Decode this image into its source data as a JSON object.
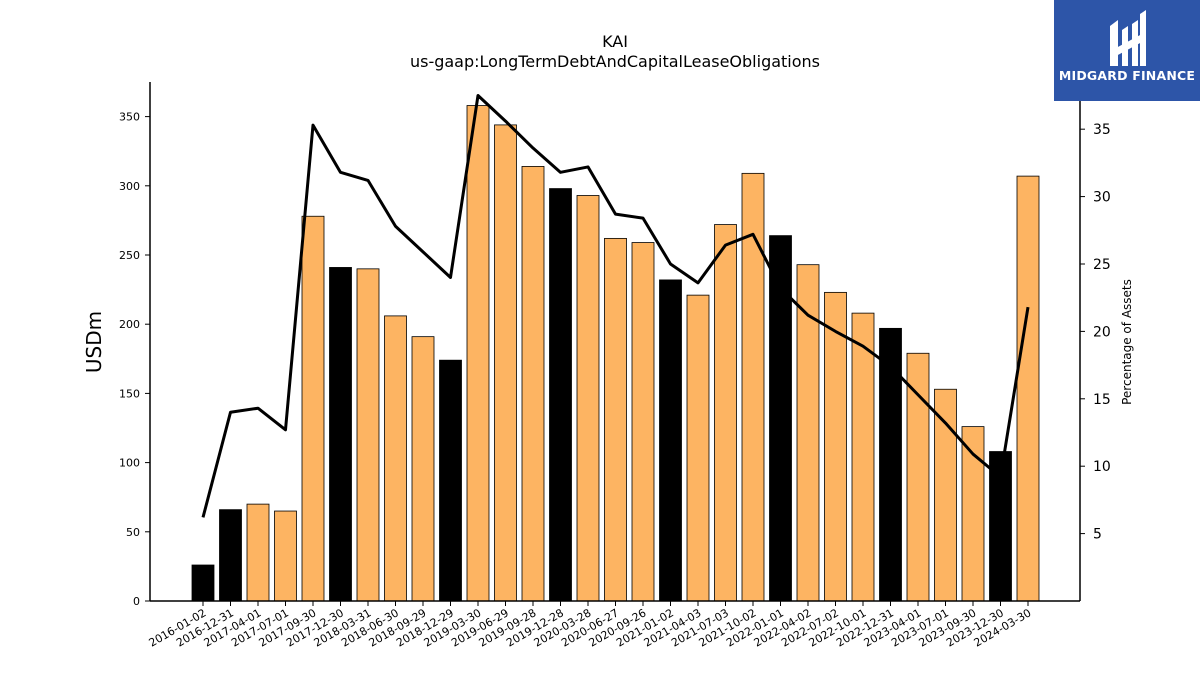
{
  "logo": {
    "text": "MIDGARD FINANCE",
    "icon": "midgard-logo-icon",
    "color": "#2d55a8"
  },
  "chart_data": {
    "type": "bar",
    "title": "KAI",
    "subtitle": "us-gaap:LongTermDebtAndCapitalLeaseObligations",
    "ylabel": "USDm",
    "ylabel_right": "Percentage of Assets",
    "ylim": [
      0,
      375
    ],
    "y2lim": [
      0,
      38.5
    ],
    "yticks": [
      0,
      50,
      100,
      150,
      200,
      250,
      300,
      350
    ],
    "y2ticks": [
      5,
      10,
      15,
      20,
      25,
      30,
      35
    ],
    "grid": false,
    "categories": [
      "2016-01-02",
      "2016-12-31",
      "2017-04-01",
      "2017-07-01",
      "2017-09-30",
      "2017-12-30",
      "2018-03-31",
      "2018-06-30",
      "2018-09-29",
      "2018-12-29",
      "2019-03-30",
      "2019-06-29",
      "2019-09-28",
      "2019-12-28",
      "2020-03-28",
      "2020-06-27",
      "2020-09-26",
      "2021-01-02",
      "2021-04-03",
      "2021-07-03",
      "2021-10-02",
      "2022-01-01",
      "2022-04-02",
      "2022-07-02",
      "2022-10-01",
      "2022-12-31",
      "2023-04-01",
      "2023-07-01",
      "2023-09-30",
      "2023-12-30",
      "2024-03-30"
    ],
    "series": [
      {
        "kind": "bar",
        "values": [
          26,
          66,
          70,
          65,
          278,
          241,
          240,
          206,
          191,
          174,
          358,
          344,
          314,
          298,
          293,
          262,
          259,
          232,
          221,
          272,
          309,
          264,
          243,
          223,
          208,
          197,
          179,
          153,
          126,
          108,
          307
        ],
        "year_end": [
          true,
          true,
          false,
          false,
          false,
          true,
          false,
          false,
          false,
          true,
          false,
          false,
          false,
          true,
          false,
          false,
          false,
          true,
          false,
          false,
          false,
          true,
          false,
          false,
          false,
          true,
          false,
          false,
          false,
          true,
          false
        ],
        "colors": {
          "quarter": "#fdb462",
          "year_end": "#000000"
        }
      },
      {
        "kind": "line",
        "axis": "right",
        "color": "#000000",
        "values": [
          6.2,
          14.0,
          14.3,
          12.7,
          35.3,
          31.8,
          31.2,
          27.8,
          25.9,
          24.0,
          37.5,
          35.6,
          33.6,
          31.8,
          32.2,
          28.7,
          28.4,
          25.0,
          23.6,
          26.4,
          27.2,
          23.2,
          21.2,
          20.0,
          18.9,
          17.4,
          15.3,
          13.2,
          10.9,
          9.2,
          21.8
        ]
      }
    ]
  }
}
